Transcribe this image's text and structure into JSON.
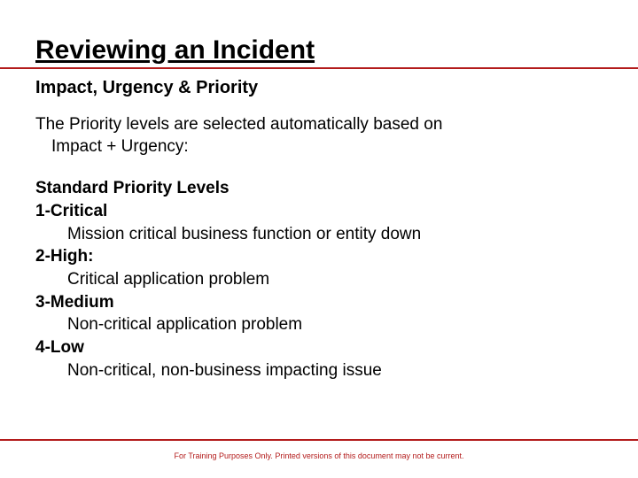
{
  "colors": {
    "accent": "#b31b1b",
    "text": "#000000",
    "background": "#ffffff",
    "footer_text": "#b31b1b"
  },
  "title": "Reviewing an Incident",
  "subtitle": "Impact, Urgency & Priority",
  "intro_line1": "The Priority levels are selected automatically based on",
  "intro_line2": "Impact + Urgency:",
  "levels_header": "Standard Priority Levels",
  "levels": [
    {
      "label": "1-Critical",
      "desc": "Mission critical business function or entity down"
    },
    {
      "label": "2-High:",
      "desc": "Critical application problem"
    },
    {
      "label": "3-Medium",
      "desc": "Non-critical application problem"
    },
    {
      "label": "4-Low",
      "desc": "Non-critical, non-business impacting issue"
    }
  ],
  "footer": "For Training Purposes Only. Printed versions of this document may not be current."
}
